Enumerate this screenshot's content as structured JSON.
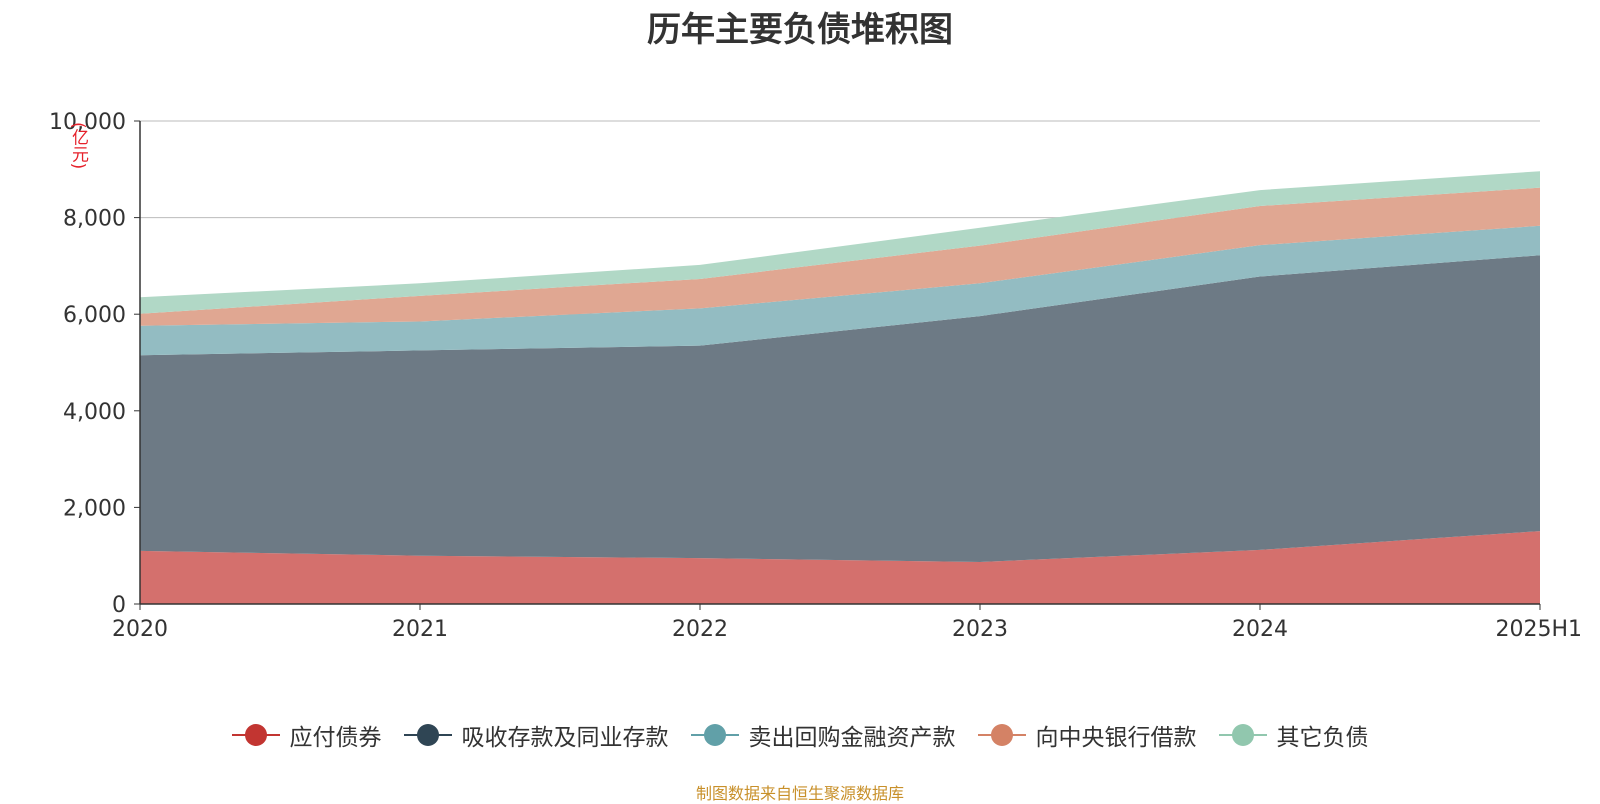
{
  "chart_data": {
    "type": "area",
    "stacked": true,
    "title": "历年主要负债堆积图",
    "unit": "(亿元)",
    "categories": [
      "2020",
      "2021",
      "2022",
      "2023",
      "2024",
      "2025H1"
    ],
    "ylim": [
      0,
      10000
    ],
    "yticks": [
      "0",
      "2,000",
      "4,000",
      "6,000",
      "8,000",
      "10,000"
    ],
    "grid": true,
    "legend_position": "bottom",
    "series": [
      {
        "name": "应付债券",
        "values": [
          1100,
          1000,
          950,
          870,
          1120,
          1510
        ],
        "color": "#c23531",
        "fill": "#d4706d"
      },
      {
        "name": "吸收存款及同业存款",
        "values": [
          4050,
          4250,
          4400,
          5090,
          5660,
          5710
        ],
        "color": "#2f4554",
        "fill": "#6d7a85"
      },
      {
        "name": "卖出回购金融资产款",
        "values": [
          610,
          600,
          770,
          680,
          650,
          610
        ],
        "color": "#61a0a8",
        "fill": "#93bcc2"
      },
      {
        "name": "向中央银行借款",
        "values": [
          250,
          530,
          610,
          780,
          810,
          790
        ],
        "color": "#d48265",
        "fill": "#e0a792"
      },
      {
        "name": "其它负债",
        "values": [
          340,
          260,
          290,
          370,
          330,
          340
        ],
        "color": "#91c7ae",
        "fill": "#b1d8c6"
      }
    ]
  },
  "footer": {
    "source": "制图数据来自恒生聚源数据库"
  }
}
